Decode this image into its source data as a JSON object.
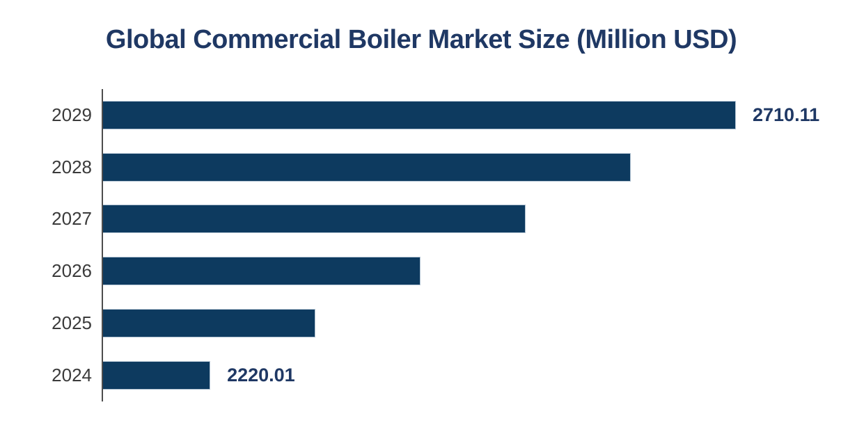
{
  "title": "Global Commercial Boiler Market Size (Million USD)",
  "colors": {
    "background": "#ffffff",
    "bar_fill": "#0d3a5f",
    "bar_border": "#b3c4d3",
    "title_text": "#1f3864",
    "data_label_text": "#1f3864",
    "axis_line": "#4d4d4d",
    "tick_label_text": "#3b3b3b"
  },
  "chart_data": {
    "type": "bar",
    "orientation": "horizontal",
    "title": "Global Commercial Boiler Market Size (Million USD)",
    "categories": [
      "2029",
      "2028",
      "2027",
      "2026",
      "2025",
      "2024"
    ],
    "values": [
      2710.11,
      2612.09,
      2514.07,
      2416.05,
      2318.03,
      2220.01
    ],
    "data_labels": [
      "2710.11",
      "",
      "",
      "",
      "",
      "2220.01"
    ],
    "xlabel": "",
    "ylabel": "",
    "xlim": [
      2120,
      2710.11
    ],
    "grid": false,
    "legend": false
  }
}
